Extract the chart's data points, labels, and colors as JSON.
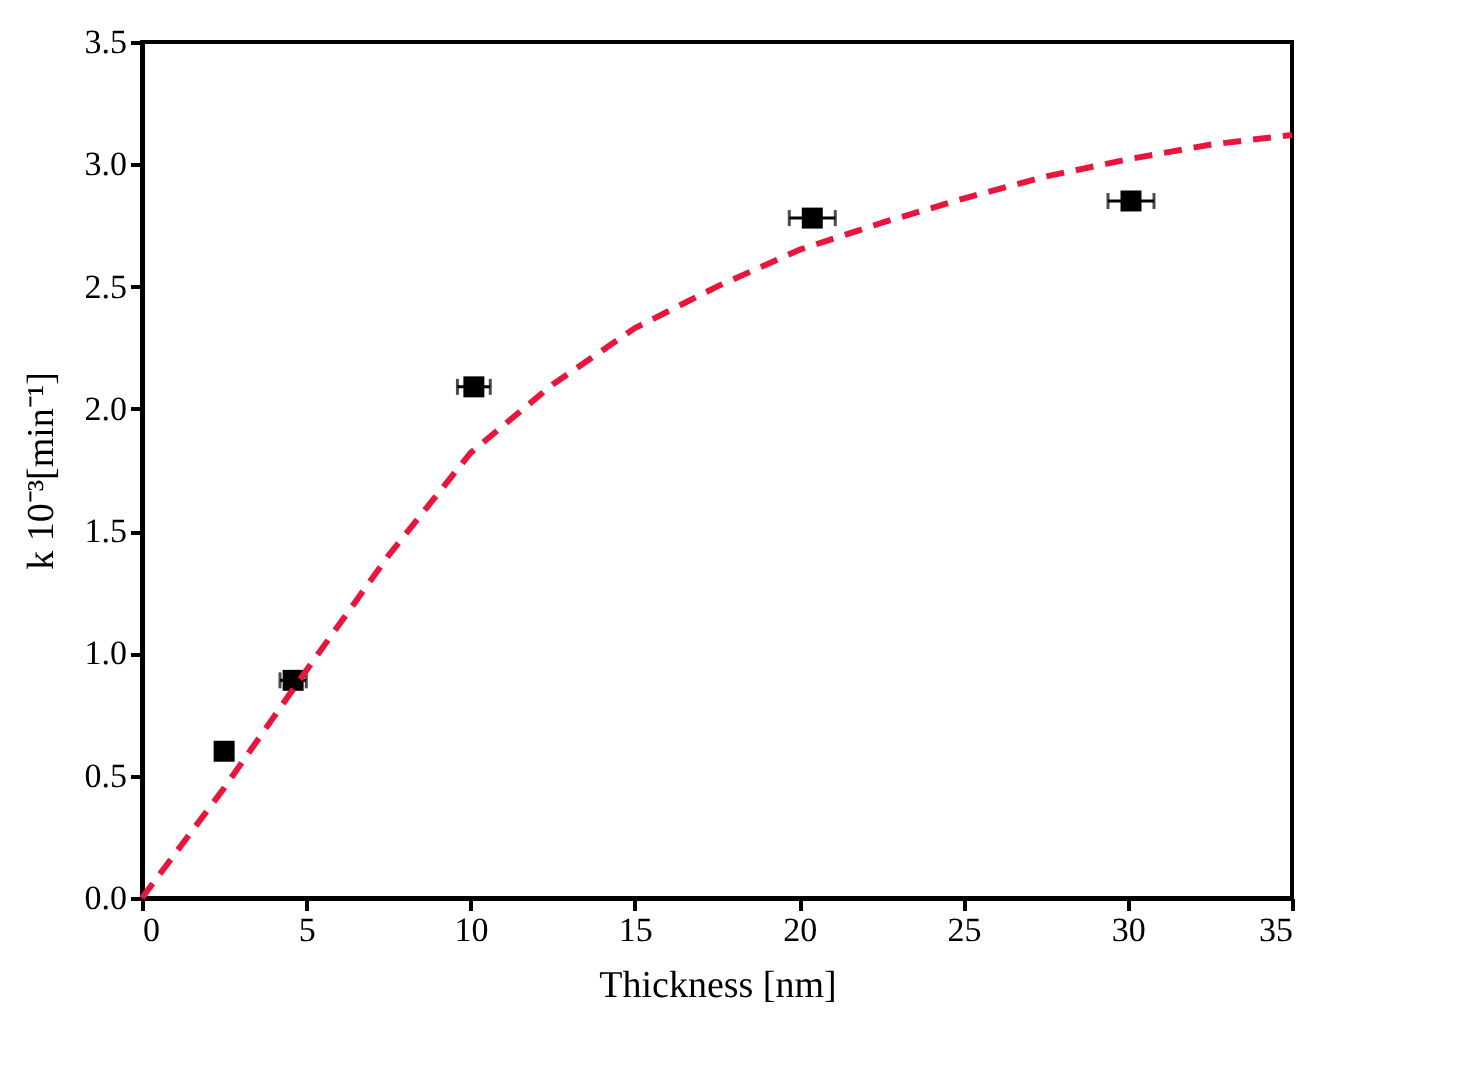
{
  "chart_data": {
    "type": "scatter",
    "xlabel": "Thickness [nm]",
    "ylabel": "k 10⁻³[min⁻¹]",
    "xlim": [
      0,
      35
    ],
    "ylim": [
      0,
      3.5
    ],
    "xticks": [
      0,
      5,
      10,
      15,
      20,
      25,
      30,
      35
    ],
    "yticks": [
      {
        "value": 0,
        "label": "0.0"
      },
      0.5,
      {
        "value": 1,
        "label": "1.0"
      },
      1.5,
      {
        "value": 2,
        "label": "2.0"
      },
      2.5,
      {
        "value": 3,
        "label": "3.0"
      },
      3.5
    ],
    "grid": false,
    "series": [
      {
        "color": "#000000",
        "marker": "square",
        "x": [
          2.5,
          4.6,
          10.1,
          20.4,
          30.1
        ],
        "values": [
          0.6,
          0.89,
          2.09,
          2.78,
          2.85
        ],
        "xerrors": [
          null,
          0.4,
          0.5,
          0.7,
          0.7
        ]
      },
      {
        "type": "line",
        "color": "#e8163c",
        "line_style": "dashed",
        "x": [
          0,
          2.5,
          5,
          7.5,
          10,
          12.5,
          15,
          17.5,
          20,
          22.5,
          25,
          27.5,
          30,
          32.5,
          35
        ],
        "values": [
          0,
          0.45,
          0.93,
          1.4,
          1.82,
          2.1,
          2.33,
          2.5,
          2.65,
          2.76,
          2.86,
          2.95,
          3.02,
          3.08,
          3.12
        ]
      }
    ]
  }
}
